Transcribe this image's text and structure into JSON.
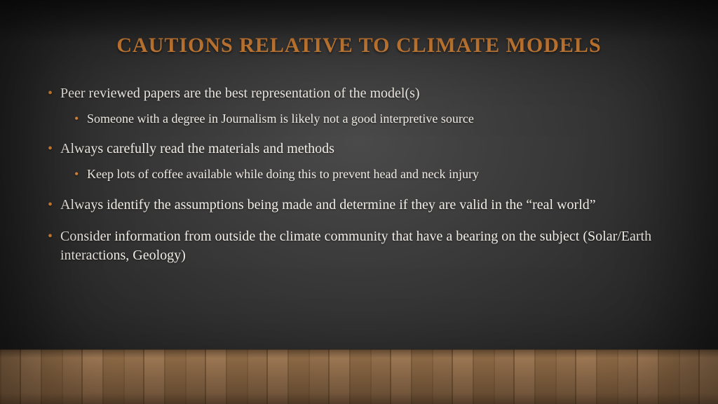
{
  "slide": {
    "title": "CAUTIONS RELATIVE TO CLIMATE MODELS",
    "title_color": "#e08a3a",
    "title_fontsize": 30,
    "body_color": "#f2ede6",
    "bullet_color": "#e08a3a",
    "lvl1_fontsize": 20,
    "lvl2_fontsize": 18,
    "background_center": "#4a4a4a",
    "background_edge": "#1a1a1a",
    "floor_base_color": "#a07850",
    "bullets": [
      {
        "text": "Peer reviewed papers are the best representation of the model(s)",
        "sub": [
          "Someone with a degree in Journalism is likely not a good interpretive source"
        ]
      },
      {
        "text": "Always carefully read the materials and methods",
        "sub": [
          "Keep lots of coffee available while doing this to prevent head and neck injury"
        ]
      },
      {
        "text": "Always identify the assumptions being made and determine if they are valid in the “real world”",
        "sub": []
      },
      {
        "text": "Consider information from outside the climate community that have a bearing on the subject (Solar/Earth interactions, Geology)",
        "sub": []
      }
    ]
  }
}
